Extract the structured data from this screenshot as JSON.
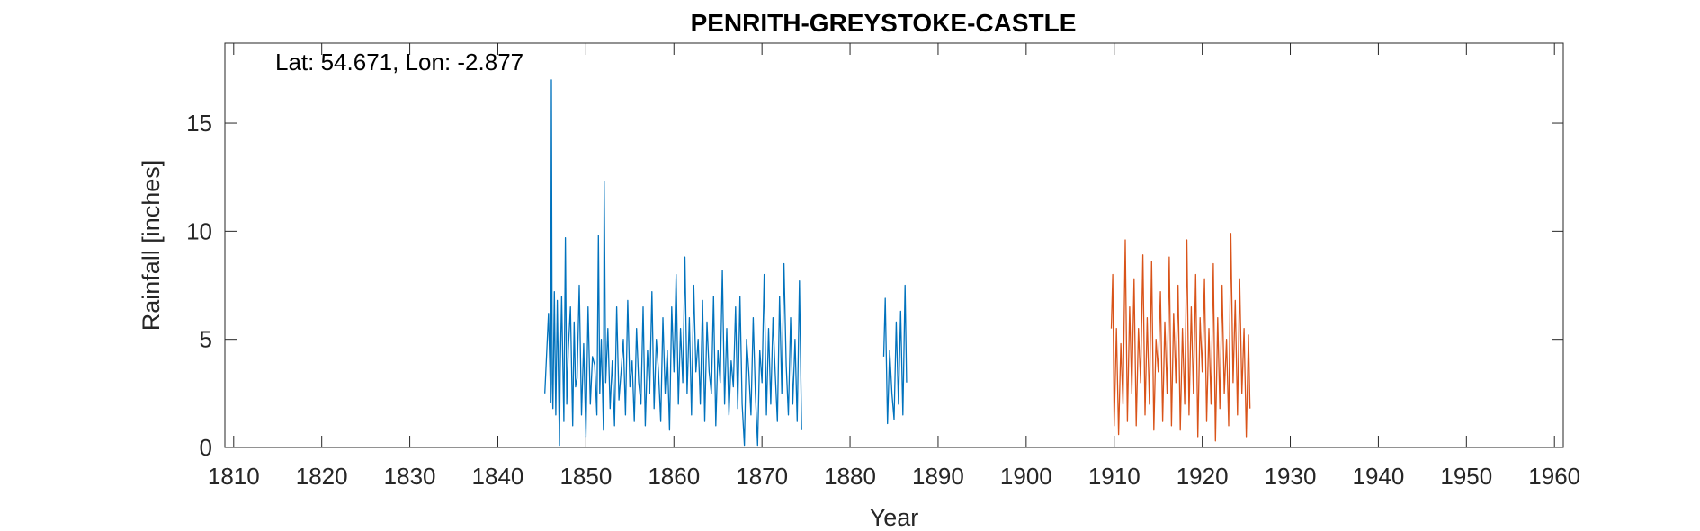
{
  "chart_data": {
    "type": "line",
    "title": "PENRITH-GREYSTOKE-CASTLE",
    "annotation": "Lat: 54.671, Lon: -2.877",
    "xlabel": "Year",
    "ylabel": "Rainfall [inches]",
    "xlim": [
      1809,
      1961
    ],
    "ylim": [
      0,
      18.7
    ],
    "xticks": [
      1810,
      1820,
      1830,
      1840,
      1850,
      1860,
      1870,
      1880,
      1890,
      1900,
      1910,
      1920,
      1930,
      1940,
      1950,
      1960
    ],
    "yticks": [
      0,
      5,
      10,
      15
    ],
    "grid": false,
    "legend": "none",
    "series": [
      {
        "color": "#0072BD",
        "x": [
          1845.33,
          1845.75,
          1846.0,
          1846.08,
          1846.17,
          1846.25,
          1846.42,
          1846.58,
          1846.75,
          1847.0,
          1847.08,
          1847.25,
          1847.5,
          1847.67,
          1847.83,
          1848.0,
          1848.25,
          1848.5,
          1848.67,
          1848.83,
          1849.0,
          1849.25,
          1849.5,
          1849.75,
          1850.0,
          1850.25,
          1850.5,
          1850.75,
          1851.0,
          1851.25,
          1851.42,
          1851.58,
          1851.75,
          1852.0,
          1852.08,
          1852.25,
          1852.5,
          1852.75,
          1853.0,
          1853.25,
          1853.5,
          1853.75,
          1854.0,
          1854.25,
          1854.5,
          1854.75,
          1855.0,
          1855.25,
          1855.5,
          1855.75,
          1856.0,
          1856.25,
          1856.5,
          1856.75,
          1857.0,
          1857.25,
          1857.5,
          1857.75,
          1858.0,
          1858.25,
          1858.5,
          1858.75,
          1859.0,
          1859.25,
          1859.5,
          1859.75,
          1860.0,
          1860.25,
          1860.5,
          1860.75,
          1861.0,
          1861.25,
          1861.5,
          1861.75,
          1862.0,
          1862.25,
          1862.5,
          1862.75,
          1863.0,
          1863.25,
          1863.5,
          1863.75,
          1864.0,
          1864.25,
          1864.5,
          1864.75,
          1865.0,
          1865.25,
          1865.5,
          1865.75,
          1866.0,
          1866.25,
          1866.5,
          1866.75,
          1867.0,
          1867.25,
          1867.5,
          1867.75,
          1868.0,
          1868.25,
          1868.5,
          1868.75,
          1869.0,
          1869.25,
          1869.5,
          1869.75,
          1870.0,
          1870.25,
          1870.5,
          1870.75,
          1871.0,
          1871.25,
          1871.5,
          1871.75,
          1872.0,
          1872.25,
          1872.5,
          1872.75,
          1873.0,
          1873.25,
          1873.5,
          1873.75,
          1874.0,
          1874.25,
          1874.5
        ],
        "y": [
          2.5,
          6.2,
          2.1,
          17.0,
          3.0,
          1.8,
          7.2,
          1.5,
          6.8,
          0.1,
          3.5,
          7.0,
          1.2,
          9.7,
          2.0,
          4.5,
          6.5,
          1.0,
          5.8,
          2.8,
          3.2,
          7.5,
          1.5,
          4.8,
          0.5,
          6.5,
          2.0,
          4.2,
          3.8,
          1.5,
          9.8,
          2.5,
          5.0,
          0.8,
          12.3,
          3.0,
          5.5,
          1.8,
          4.0,
          1.0,
          6.5,
          2.2,
          3.5,
          5.0,
          1.5,
          6.8,
          2.8,
          4.0,
          1.2,
          5.5,
          3.0,
          2.0,
          6.5,
          1.0,
          4.5,
          2.5,
          7.2,
          1.8,
          5.0,
          3.5,
          1.2,
          6.0,
          2.5,
          4.5,
          0.8,
          6.5,
          3.5,
          8.0,
          2.0,
          5.5,
          3.0,
          8.8,
          2.5,
          6.0,
          1.5,
          7.5,
          3.5,
          5.0,
          2.0,
          6.8,
          1.2,
          5.8,
          3.5,
          2.5,
          7.0,
          1.0,
          4.5,
          3.0,
          8.2,
          2.0,
          5.5,
          1.5,
          4.0,
          2.8,
          6.5,
          1.8,
          7.0,
          2.0,
          0.1,
          5.0,
          3.5,
          1.5,
          6.0,
          2.5,
          0.1,
          4.5,
          3.0,
          8.0,
          1.5,
          5.5,
          2.0,
          6.0,
          3.5,
          1.2,
          7.0,
          2.5,
          8.5,
          3.8,
          1.5,
          6.0,
          2.0,
          5.0,
          1.2,
          7.7,
          0.8
        ]
      },
      {
        "color": "#0072BD",
        "x": [
          1883.83,
          1884.0,
          1884.25,
          1884.5,
          1884.75,
          1885.0,
          1885.25,
          1885.5,
          1885.75,
          1886.0,
          1886.25,
          1886.42
        ],
        "y": [
          4.2,
          6.9,
          1.1,
          4.5,
          2.5,
          1.3,
          5.8,
          2.0,
          6.3,
          1.5,
          7.5,
          3.0
        ]
      },
      {
        "color": "#D95319",
        "x": [
          1909.67,
          1909.83,
          1910.0,
          1910.25,
          1910.5,
          1910.75,
          1911.0,
          1911.25,
          1911.5,
          1911.75,
          1912.0,
          1912.25,
          1912.5,
          1912.75,
          1913.0,
          1913.25,
          1913.5,
          1913.75,
          1914.0,
          1914.25,
          1914.5,
          1914.75,
          1915.0,
          1915.25,
          1915.5,
          1915.75,
          1916.0,
          1916.25,
          1916.5,
          1916.75,
          1917.0,
          1917.25,
          1917.5,
          1917.75,
          1918.0,
          1918.25,
          1918.5,
          1918.75,
          1919.0,
          1919.25,
          1919.5,
          1919.75,
          1920.0,
          1920.25,
          1920.5,
          1920.75,
          1921.0,
          1921.25,
          1921.5,
          1921.75,
          1922.0,
          1922.25,
          1922.5,
          1922.75,
          1923.0,
          1923.25,
          1923.5,
          1923.75,
          1924.0,
          1924.25,
          1924.5,
          1924.75,
          1925.0,
          1925.25,
          1925.42
        ],
        "y": [
          5.5,
          8.0,
          1.0,
          5.5,
          0.6,
          4.8,
          2.0,
          9.6,
          1.2,
          6.5,
          2.5,
          7.8,
          1.0,
          5.5,
          3.0,
          8.9,
          1.5,
          6.0,
          2.0,
          8.6,
          0.8,
          5.0,
          3.5,
          7.2,
          1.2,
          5.8,
          2.5,
          8.8,
          1.0,
          6.2,
          3.0,
          7.5,
          0.8,
          5.5,
          2.0,
          9.6,
          1.5,
          6.5,
          2.5,
          8.0,
          0.5,
          6.0,
          3.5,
          7.8,
          1.2,
          5.5,
          2.0,
          8.5,
          0.3,
          6.0,
          1.8,
          7.5,
          2.5,
          5.0,
          1.0,
          9.9,
          3.0,
          6.8,
          1.5,
          7.8,
          2.5,
          5.5,
          0.5,
          5.2,
          1.8
        ]
      }
    ]
  }
}
